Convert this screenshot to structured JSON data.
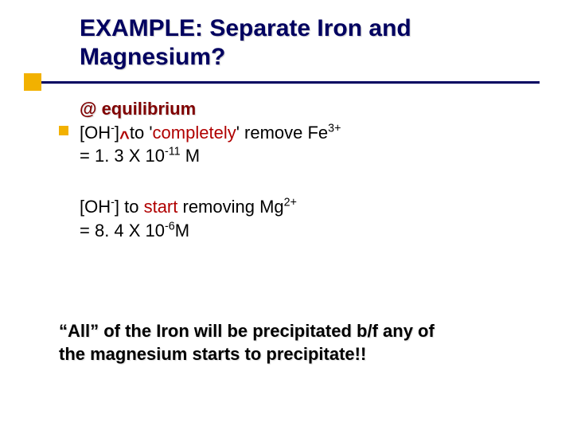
{
  "title": {
    "text_line1": "EXAMPLE: Separate Iron and",
    "text_line2": "Magnesium?",
    "color": "#000060",
    "fontsize": 30,
    "underline_color": "#000060",
    "accent_square_color": "#f2b100"
  },
  "bullet": {
    "color": "#f2b100"
  },
  "equilibrium_label": {
    "text": "@ equilibrium",
    "color": "#800000"
  },
  "block1": {
    "prefix": "[OH",
    "sup1": "-",
    "mid1": "]",
    "caret": "^",
    "mid2": "to '",
    "emph": "completely",
    "mid3": "' remove Fe",
    "sup2": "3+",
    "line2a": "= 1. 3 X 10",
    "line2sup": "-11",
    "line2b": " M"
  },
  "block2": {
    "prefix": "[OH",
    "sup1": "-",
    "mid1": "] to ",
    "emph": "start",
    "mid2": " removing Mg",
    "sup2": "2+",
    "line2a": "= 8. 4 X 10",
    "line2sup": "-6",
    "line2b": "M"
  },
  "conclusion": {
    "line1": "“All” of the Iron will be precipitated b/f any of",
    "line2": "the magnesium starts to precipitate!!"
  },
  "colors": {
    "background": "#ffffff",
    "body_text": "#000000",
    "emphasis": "#b00000"
  }
}
